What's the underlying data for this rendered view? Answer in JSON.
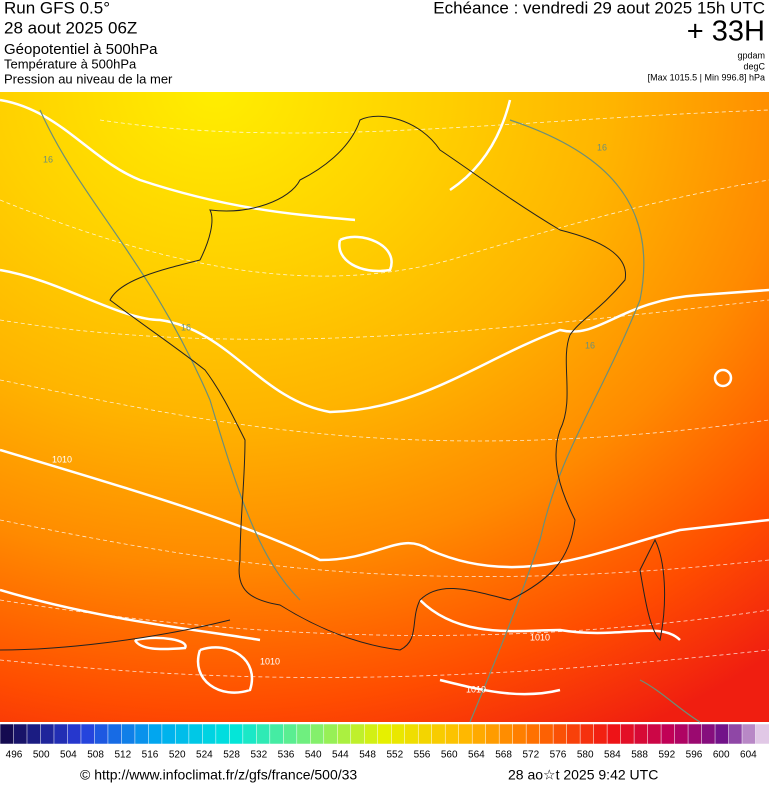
{
  "header": {
    "run": "Run GFS 0.5°",
    "run_date": "28 aout 2025 06Z",
    "layer_1": "Géopotentiel à 500hPa",
    "layer_2": "Température à 500hPa",
    "layer_3": "Pression au niveau de la mer",
    "valid_time": "Echéance : vendredi 29 aout 2025 15h UTC",
    "lead": "+ 33H",
    "unit_1": "gpdam",
    "unit_2": "degC",
    "pressure_range": "[Max 1015.5 | Min 996.8] hPa"
  },
  "map": {
    "contour_labels": [
      "16",
      "16",
      "16",
      "16",
      "1010",
      "1010",
      "1010",
      "1010"
    ]
  },
  "colorbar": {
    "ticks": [
      496,
      500,
      504,
      508,
      512,
      516,
      520,
      524,
      528,
      532,
      536,
      540,
      544,
      548,
      552,
      556,
      560,
      564,
      568,
      572,
      576,
      580,
      584,
      588,
      592,
      596,
      600,
      604
    ]
  },
  "footer": {
    "source": "© http://www.infoclimat.fr/z/gfs/france/500/33",
    "generated": "28 ao☆t 2025  9:42 UTC"
  }
}
